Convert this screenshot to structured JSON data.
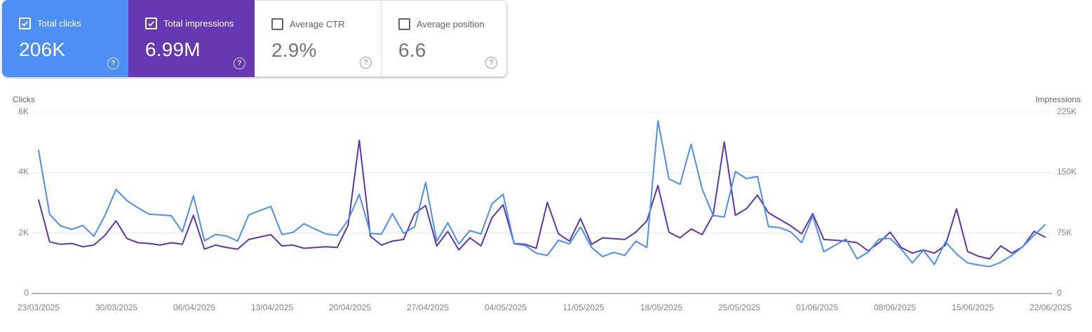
{
  "app": "Search Console Performance",
  "colors": {
    "card_clicks_bg": "#4d8ff5",
    "card_impressions_bg": "#6638b1",
    "line_clicks": "#4b8ff5",
    "line_impressions": "#5e35b1",
    "gridline": "#e9eaed",
    "axis_line": "#9aa0a6",
    "label_grey": "#5f6368",
    "tick_grey": "#80868b",
    "value_grey": "#757575"
  },
  "cards": [
    {
      "label": "Total clicks",
      "value": "206K",
      "checked": true,
      "selected": true,
      "help_glyph": "?"
    },
    {
      "label": "Total impressions",
      "value": "6.99M",
      "checked": true,
      "selected": true,
      "help_glyph": "?"
    },
    {
      "label": "Average CTR",
      "value": "2.9%",
      "checked": false,
      "selected": false,
      "help_glyph": "?"
    },
    {
      "label": "Average position",
      "value": "6.6",
      "checked": false,
      "selected": false,
      "help_glyph": "?"
    }
  ],
  "chart_data": {
    "type": "line",
    "x_start_date": "23/03/2025",
    "x_end_date": "22/06/2025",
    "x_interval": "daily",
    "x_tick_labels": [
      "23/03/2025",
      "30/03/2025",
      "06/04/2025",
      "13/04/2025",
      "20/04/2025",
      "27/04/2025",
      "04/05/2025",
      "11/05/2025",
      "18/05/2025",
      "25/05/2025",
      "01/06/2025",
      "08/06/2025",
      "15/06/2025",
      "22/06/2025"
    ],
    "left_axis": {
      "title": "Clicks",
      "ticks": [
        "0",
        "2K",
        "4K",
        "6K"
      ],
      "tick_values": [
        0,
        2000,
        4000,
        6000
      ],
      "range": [
        0,
        6000
      ]
    },
    "right_axis": {
      "title": "Impressions",
      "ticks": [
        "0",
        "75K",
        "150K",
        "225K"
      ],
      "tick_values": [
        0,
        75000,
        150000,
        225000
      ],
      "range": [
        0,
        225000
      ]
    },
    "grid": true,
    "legend_position": "none",
    "series": [
      {
        "name": "Total clicks",
        "axis": "left",
        "color": "#4b8ff5",
        "values": [
          4730,
          2620,
          2230,
          2120,
          2250,
          1890,
          2580,
          3440,
          3070,
          2830,
          2620,
          2600,
          2570,
          2040,
          3230,
          1740,
          1950,
          1900,
          1730,
          2600,
          2740,
          2880,
          1950,
          2020,
          2310,
          2130,
          1970,
          1920,
          2430,
          3280,
          1990,
          1960,
          2640,
          1990,
          2200,
          3670,
          1730,
          2340,
          1640,
          2080,
          1970,
          2970,
          3280,
          1640,
          1590,
          1330,
          1260,
          1760,
          1640,
          2200,
          1520,
          1220,
          1360,
          1260,
          1730,
          1520,
          5710,
          3790,
          3610,
          4940,
          3450,
          2580,
          2530,
          4030,
          3800,
          3870,
          2210,
          2180,
          2040,
          1680,
          2570,
          1380,
          1590,
          1800,
          1150,
          1360,
          1800,
          1820,
          1470,
          1010,
          1430,
          960,
          1710,
          1310,
          1010,
          940,
          890,
          1030,
          1260,
          1550,
          1920,
          2270
        ]
      },
      {
        "name": "Total impressions",
        "axis": "right",
        "color": "#5e35b1",
        "values": [
          116000,
          64000,
          61000,
          62000,
          58000,
          60000,
          72000,
          90000,
          68000,
          63000,
          62000,
          60000,
          63000,
          61000,
          97000,
          55000,
          60000,
          57000,
          55000,
          67000,
          70000,
          73000,
          59000,
          60000,
          56000,
          57000,
          58000,
          57000,
          85000,
          190000,
          71000,
          60000,
          65000,
          67000,
          99000,
          109000,
          59000,
          77000,
          54000,
          69000,
          59000,
          94000,
          110000,
          62000,
          61000,
          56000,
          113000,
          74000,
          65000,
          93000,
          61000,
          69000,
          68000,
          67000,
          76000,
          90000,
          134000,
          76000,
          69000,
          80000,
          73000,
          98000,
          188000,
          97000,
          105000,
          122000,
          100000,
          92000,
          84000,
          74000,
          99000,
          67000,
          66000,
          65000,
          63000,
          53000,
          63000,
          76000,
          57000,
          50000,
          54000,
          50000,
          60000,
          105000,
          52000,
          46000,
          43000,
          59000,
          50000,
          58000,
          77000,
          70000
        ]
      }
    ]
  }
}
